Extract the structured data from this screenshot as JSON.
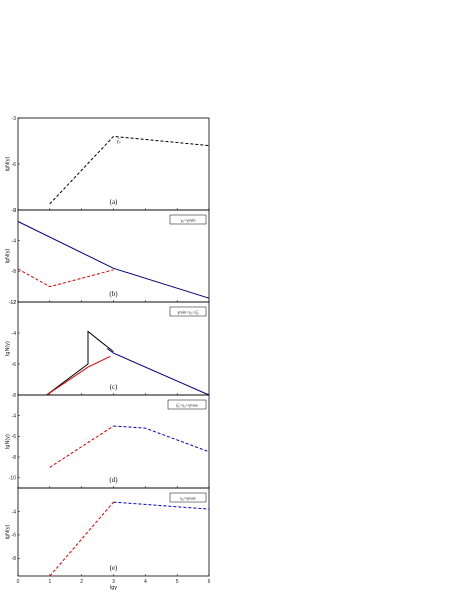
{
  "chart_data": [
    {
      "type": "line",
      "panel_label": "(a)",
      "ylabel": "lgN(γ)",
      "xlim": [
        0,
        6
      ],
      "ylim": [
        -9,
        -3
      ],
      "yticks": [
        "-3",
        "-6",
        "-9"
      ],
      "legend": "",
      "annotations": [
        {
          "text": "γ̅₀",
          "x": 3.1,
          "y": -4.6
        }
      ],
      "series": [
        {
          "color": "#000000",
          "dash": true,
          "x": [
            1,
            3,
            6
          ],
          "y": [
            -8.6,
            -4.2,
            -4.8
          ]
        }
      ]
    },
    {
      "type": "line",
      "panel_label": "(b)",
      "ylabel": "lgN(γ)",
      "xlim": [
        0,
        6
      ],
      "ylim": [
        -12,
        0
      ],
      "yticks": [
        "0",
        "-4",
        "-8",
        "-12"
      ],
      "legend": "γ₀<γmin",
      "series": [
        {
          "color": "#000080",
          "dash": false,
          "x": [
            0,
            3,
            6
          ],
          "y": [
            -1.5,
            -7.6,
            -11.5
          ]
        },
        {
          "color": "#dd0000",
          "dash": true,
          "x": [
            0,
            1,
            3
          ],
          "y": [
            -7.7,
            -10,
            -7.8
          ]
        }
      ]
    },
    {
      "type": "line",
      "panel_label": "(c)",
      "ylabel": "lgN(γ)",
      "xlim": [
        0,
        6
      ],
      "ylim": [
        -8,
        -2
      ],
      "yticks": [
        "-2",
        "-4",
        "-6",
        "-8"
      ],
      "legend": "γmin<γ₀<γ̅₀",
      "series": [
        {
          "color": "#000000",
          "dash": false,
          "x": [
            0.9,
            2.2,
            2.2,
            2.5,
            3
          ],
          "y": [
            -8,
            -6,
            -3.9,
            -4.4,
            -5.2
          ]
        },
        {
          "color": "#dd0000",
          "dash": false,
          "x": [
            0.9,
            2.2,
            2.9
          ],
          "y": [
            -8,
            -6.2,
            -5.5
          ]
        },
        {
          "color": "#000080",
          "dash": false,
          "x": [
            2.8,
            3,
            6
          ],
          "y": [
            -5,
            -5.3,
            -8
          ]
        }
      ]
    },
    {
      "type": "line",
      "panel_label": "(d)",
      "ylabel": "lgN(γ)",
      "xlim": [
        0,
        6
      ],
      "ylim": [
        -11,
        -2
      ],
      "yticks": [
        "-4",
        "-6",
        "-8",
        "-10"
      ],
      "legend": "γ̅₀<γ₀<γmax",
      "series": [
        {
          "color": "#dd0000",
          "dash": true,
          "x": [
            1,
            3
          ],
          "y": [
            -9,
            -5
          ]
        },
        {
          "color": "#0000cc",
          "dash": true,
          "x": [
            3,
            4,
            6
          ],
          "y": [
            -5,
            -5.2,
            -7.5
          ]
        }
      ]
    },
    {
      "type": "line",
      "panel_label": "(e)",
      "ylabel": "lgN(γ)",
      "xlabel": "lgγ",
      "xlim": [
        0,
        6
      ],
      "ylim": [
        -9.5,
        -2
      ],
      "yticks": [
        "-4",
        "-6",
        "-8"
      ],
      "xticks": [
        "0",
        "1",
        "2",
        "3",
        "4",
        "5",
        "6"
      ],
      "legend": "γ₀>γmax",
      "series": [
        {
          "color": "#dd0000",
          "dash": true,
          "x": [
            1,
            3
          ],
          "y": [
            -9.5,
            -3.2
          ]
        },
        {
          "color": "#0000cc",
          "dash": true,
          "x": [
            3,
            6
          ],
          "y": [
            -3.2,
            -3.8
          ]
        }
      ]
    }
  ]
}
